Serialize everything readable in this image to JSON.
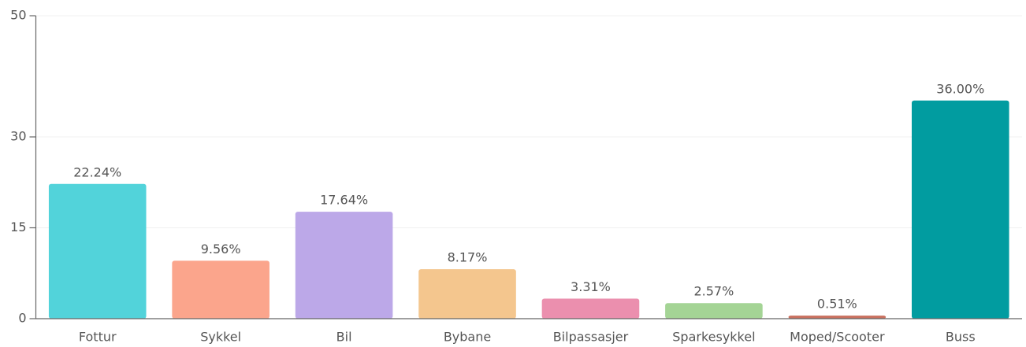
{
  "chart_data": {
    "type": "bar",
    "categories": [
      "Fottur",
      "Sykkel",
      "Bil",
      "Bybane",
      "Bilpassasjer",
      "Sparkesykkel",
      "Moped/Scooter",
      "Buss"
    ],
    "values": [
      22.24,
      9.56,
      17.64,
      8.17,
      3.31,
      2.57,
      0.51,
      36.0
    ],
    "value_labels": [
      "22.24%",
      "9.56%",
      "17.64%",
      "8.17%",
      "3.31%",
      "2.57%",
      "0.51%",
      "36.00%"
    ],
    "colors": [
      "#52d3da",
      "#fba58c",
      "#bca8e8",
      "#f4c68e",
      "#eb8fae",
      "#a4d495",
      "#c9705f",
      "#019ca0"
    ],
    "ylim": [
      0,
      50
    ],
    "yticks": [
      0,
      15,
      30,
      50
    ],
    "grid": true
  }
}
